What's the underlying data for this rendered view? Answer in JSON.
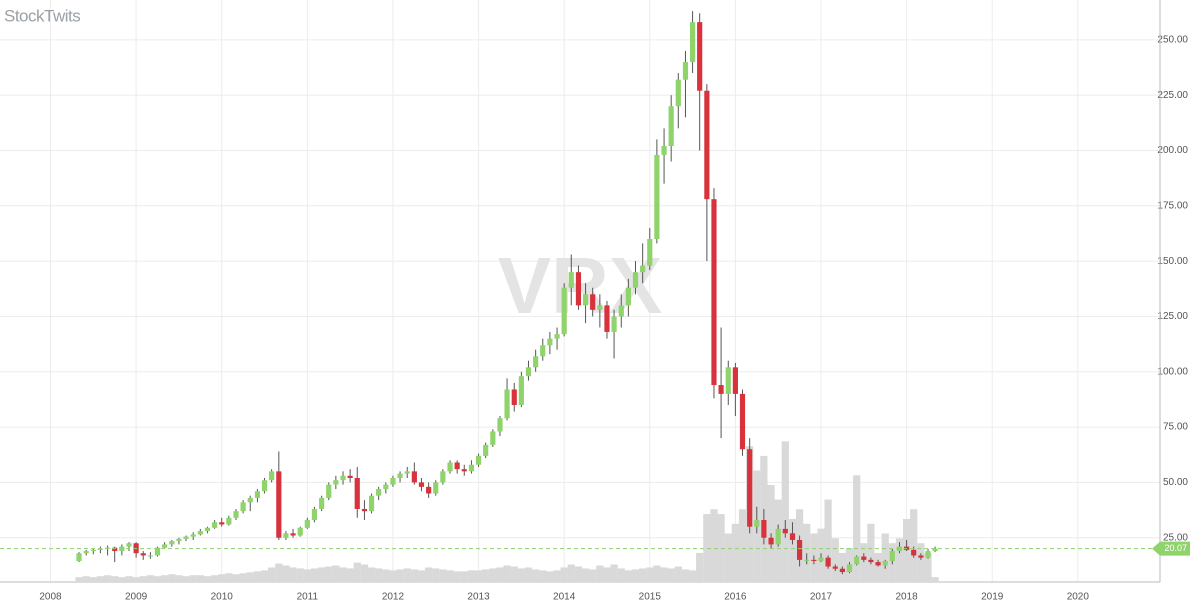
{
  "chart_data": {
    "type": "candlestick",
    "logo": "StockTwits",
    "watermark": "VRX",
    "x": [
      2008.333,
      2008.417,
      2008.5,
      2008.583,
      2008.667,
      2008.75,
      2008.833,
      2008.917,
      2009.0,
      2009.083,
      2009.167,
      2009.25,
      2009.333,
      2009.417,
      2009.5,
      2009.583,
      2009.667,
      2009.75,
      2009.833,
      2009.917,
      2010.0,
      2010.083,
      2010.167,
      2010.25,
      2010.333,
      2010.417,
      2010.5,
      2010.583,
      2010.667,
      2010.75,
      2010.833,
      2010.917,
      2011.0,
      2011.083,
      2011.167,
      2011.25,
      2011.333,
      2011.417,
      2011.5,
      2011.583,
      2011.667,
      2011.75,
      2011.833,
      2011.917,
      2012.0,
      2012.083,
      2012.167,
      2012.25,
      2012.333,
      2012.417,
      2012.5,
      2012.583,
      2012.667,
      2012.75,
      2012.833,
      2012.917,
      2013.0,
      2013.083,
      2013.167,
      2013.25,
      2013.333,
      2013.417,
      2013.5,
      2013.583,
      2013.667,
      2013.75,
      2013.833,
      2013.917,
      2014.0,
      2014.083,
      2014.167,
      2014.25,
      2014.333,
      2014.417,
      2014.5,
      2014.583,
      2014.667,
      2014.75,
      2014.833,
      2014.917,
      2015.0,
      2015.083,
      2015.167,
      2015.25,
      2015.333,
      2015.417,
      2015.5,
      2015.583,
      2015.667,
      2015.75,
      2015.833,
      2015.917,
      2016.0,
      2016.083,
      2016.167,
      2016.25,
      2016.333,
      2016.417,
      2016.5,
      2016.583,
      2016.667,
      2016.75,
      2016.833,
      2016.917,
      2017.0,
      2017.083,
      2017.167,
      2017.25,
      2017.333,
      2017.417,
      2017.5,
      2017.583,
      2017.667,
      2017.75,
      2017.833,
      2017.917,
      2018.0,
      2018.083,
      2018.167,
      2018.25,
      2018.333
    ],
    "open": [
      14.5,
      18,
      19,
      19.5,
      20,
      20.5,
      19,
      21,
      22.5,
      18,
      17,
      17,
      20.5,
      22,
      23.5,
      24.5,
      25.5,
      26.5,
      28,
      29.5,
      32,
      31,
      34,
      37,
      41,
      43,
      46,
      51,
      55,
      25,
      27,
      26,
      29.5,
      33,
      38,
      43,
      49,
      51,
      53,
      52,
      38,
      37,
      44,
      47,
      49,
      52,
      54,
      55,
      50,
      48,
      45,
      50,
      55,
      59,
      56,
      55,
      58,
      62,
      67,
      73,
      79,
      92,
      85,
      98,
      102,
      107,
      112,
      115,
      117,
      138,
      145,
      130,
      135,
      128,
      130,
      118,
      125,
      130,
      138,
      145,
      148,
      160,
      198,
      202,
      220,
      232,
      240,
      258,
      227,
      178,
      94,
      90,
      102,
      90,
      65,
      30,
      33,
      25,
      22,
      29,
      27,
      24,
      15,
      15,
      14.5,
      16,
      12,
      11,
      9.5,
      13,
      16.5,
      15,
      14,
      12.5,
      14.5,
      19,
      21,
      19.5,
      17,
      16,
      19
    ],
    "high": [
      18.5,
      19.5,
      20,
      21,
      21.5,
      21,
      22,
      23,
      23,
      19,
      18.5,
      21,
      23,
      24,
      25,
      26,
      27.5,
      29,
      30,
      33,
      34,
      35,
      38,
      42,
      44,
      47,
      52,
      56,
      64,
      28,
      29,
      30,
      34,
      39,
      44,
      50,
      53,
      55,
      56,
      57,
      42,
      45,
      48,
      50,
      53,
      55,
      57,
      59,
      52,
      50,
      51,
      56,
      60,
      60,
      58,
      60,
      63,
      68,
      74,
      80,
      97,
      95,
      100,
      105,
      110,
      115,
      118,
      120,
      140,
      153,
      148,
      140,
      138,
      135,
      132,
      128,
      135,
      142,
      150,
      158,
      165,
      205,
      210,
      225,
      235,
      245,
      263,
      262,
      230,
      183,
      120,
      105,
      104,
      92,
      70,
      39,
      38,
      27,
      31,
      33,
      32,
      26,
      18,
      17,
      18,
      17,
      13,
      12,
      14,
      17,
      18,
      16,
      15,
      15,
      20,
      23,
      24,
      21,
      18,
      20,
      21
    ],
    "low": [
      14,
      17,
      17.5,
      18,
      17,
      14,
      17,
      19,
      16,
      15,
      15.5,
      16.5,
      20,
      21,
      22,
      23.5,
      24,
      26,
      27,
      29,
      30,
      30.5,
      33,
      36,
      37,
      41,
      45,
      50,
      24,
      24,
      25,
      25.5,
      29,
      32,
      37,
      42,
      47,
      49,
      50,
      34,
      33,
      36,
      42,
      45,
      48,
      50,
      52,
      49,
      46,
      43,
      44,
      49,
      54,
      54,
      53,
      54,
      57,
      61,
      66,
      71,
      78,
      82,
      84,
      96,
      100,
      105,
      108,
      110,
      116,
      130,
      128,
      122,
      125,
      120,
      115,
      106,
      120,
      125,
      135,
      140,
      146,
      158,
      185,
      195,
      210,
      215,
      235,
      200,
      150,
      88,
      70,
      85,
      80,
      62,
      27,
      27,
      22,
      20,
      21,
      25,
      22,
      12,
      13,
      13,
      14,
      11,
      10,
      8.5,
      9,
      12.5,
      14,
      13,
      12,
      11,
      13,
      18,
      19,
      16,
      15,
      15.5,
      18.5
    ],
    "close": [
      18,
      19,
      19.5,
      20,
      20.5,
      19,
      21,
      22.5,
      18,
      17,
      17,
      20.5,
      22,
      23.5,
      24.5,
      25.5,
      26.5,
      28,
      29.5,
      32,
      31,
      34,
      37,
      41,
      43,
      46,
      51,
      55,
      25,
      27,
      26,
      29.5,
      33,
      38,
      43,
      49,
      51,
      53,
      52,
      38,
      37,
      44,
      47,
      49,
      52,
      54,
      55,
      50,
      48,
      45,
      50,
      55,
      59,
      56,
      55,
      58,
      62,
      67,
      73,
      79,
      92,
      85,
      98,
      102,
      107,
      112,
      115,
      117,
      138,
      145,
      130,
      135,
      128,
      130,
      118,
      125,
      130,
      138,
      145,
      148,
      160,
      198,
      202,
      220,
      232,
      240,
      258,
      227,
      178,
      94,
      90,
      102,
      90,
      65,
      30,
      33,
      25,
      22,
      29,
      27,
      24,
      15,
      15,
      14.5,
      16,
      12,
      11,
      9.5,
      13,
      16.5,
      15,
      14,
      12.5,
      14.5,
      19,
      21,
      19.5,
      17,
      16,
      19,
      20.07
    ],
    "volume": [
      10,
      12,
      10,
      12,
      14,
      12,
      10,
      12,
      10,
      12,
      14,
      12,
      14,
      16,
      14,
      12,
      14,
      14,
      12,
      14,
      16,
      18,
      16,
      18,
      20,
      22,
      24,
      30,
      38,
      34,
      30,
      28,
      26,
      28,
      30,
      32,
      34,
      30,
      28,
      40,
      36,
      30,
      28,
      26,
      24,
      26,
      28,
      26,
      24,
      30,
      28,
      26,
      24,
      22,
      22,
      24,
      24,
      26,
      28,
      30,
      34,
      32,
      28,
      30,
      26,
      24,
      22,
      24,
      30,
      36,
      32,
      28,
      26,
      34,
      30,
      36,
      28,
      24,
      26,
      28,
      30,
      34,
      30,
      28,
      32,
      26,
      24,
      60,
      140,
      150,
      140,
      100,
      120,
      150,
      280,
      230,
      260,
      200,
      170,
      290,
      130,
      150,
      120,
      100,
      110,
      170,
      90,
      60,
      70,
      220,
      80,
      120,
      60,
      100,
      80,
      90,
      130,
      150,
      80,
      60,
      10
    ],
    "up_color": "#8fd36b",
    "down_color": "#d8323c",
    "volume_color": "#d9d9d9",
    "last_price": {
      "value": 20.07,
      "label": "20.07"
    },
    "last_color": "#8fd36b",
    "xlim": [
      2007.41,
      2020.96
    ],
    "xticks": [
      2008,
      2009,
      2010,
      2011,
      2012,
      2013,
      2014,
      2015,
      2016,
      2017,
      2018,
      2019,
      2020
    ],
    "ylim": [
      5,
      268
    ],
    "yticks": [
      {
        "value": 25,
        "label": "25.00"
      },
      {
        "value": 50,
        "label": "50.00"
      },
      {
        "value": 75,
        "label": "75.00"
      },
      {
        "value": 100,
        "label": "100.00"
      },
      {
        "value": 125,
        "label": "125.00"
      },
      {
        "value": 150,
        "label": "150.00"
      },
      {
        "value": 175,
        "label": "175.00"
      },
      {
        "value": 200,
        "label": "200.00"
      },
      {
        "value": 225,
        "label": "225.00"
      },
      {
        "value": 250,
        "label": "250.00"
      }
    ],
    "y2lim": [
      0,
      1200
    ],
    "grid": true
  }
}
